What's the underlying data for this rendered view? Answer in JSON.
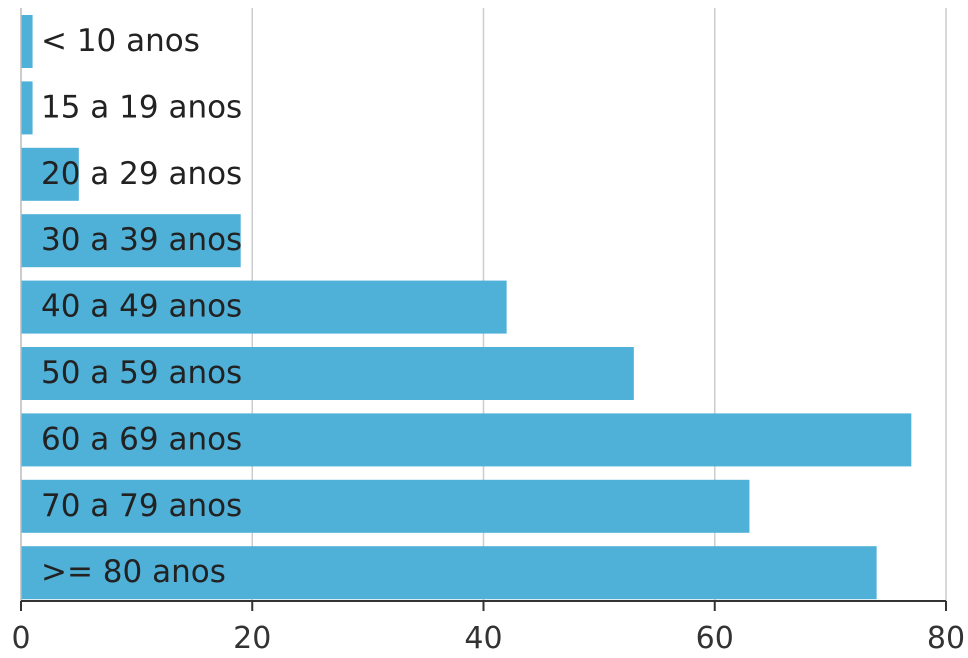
{
  "chart_data": {
    "type": "bar",
    "orientation": "horizontal",
    "categories": [
      "< 10 anos",
      "15 a 19 anos",
      "20 a 29 anos",
      "30 a 39 anos",
      "40 a 49 anos",
      "50 a 59 anos",
      "60 a 69 anos",
      "70 a 79  anos",
      ">= 80 anos"
    ],
    "values": [
      1,
      1,
      5,
      19,
      42,
      53,
      77,
      63,
      74
    ],
    "xlim": [
      0,
      80
    ],
    "xticks": [
      0,
      20,
      40,
      60,
      80
    ],
    "xtick_labels": [
      "0",
      "20",
      "40",
      "60",
      "80"
    ],
    "grid": "vertical",
    "legend": "none",
    "title": "",
    "xlabel": "",
    "ylabel": "",
    "colors": {
      "bar": "#4fb0d8",
      "grid": "#cccccc",
      "axis": "#333333",
      "label": "#222222"
    }
  }
}
